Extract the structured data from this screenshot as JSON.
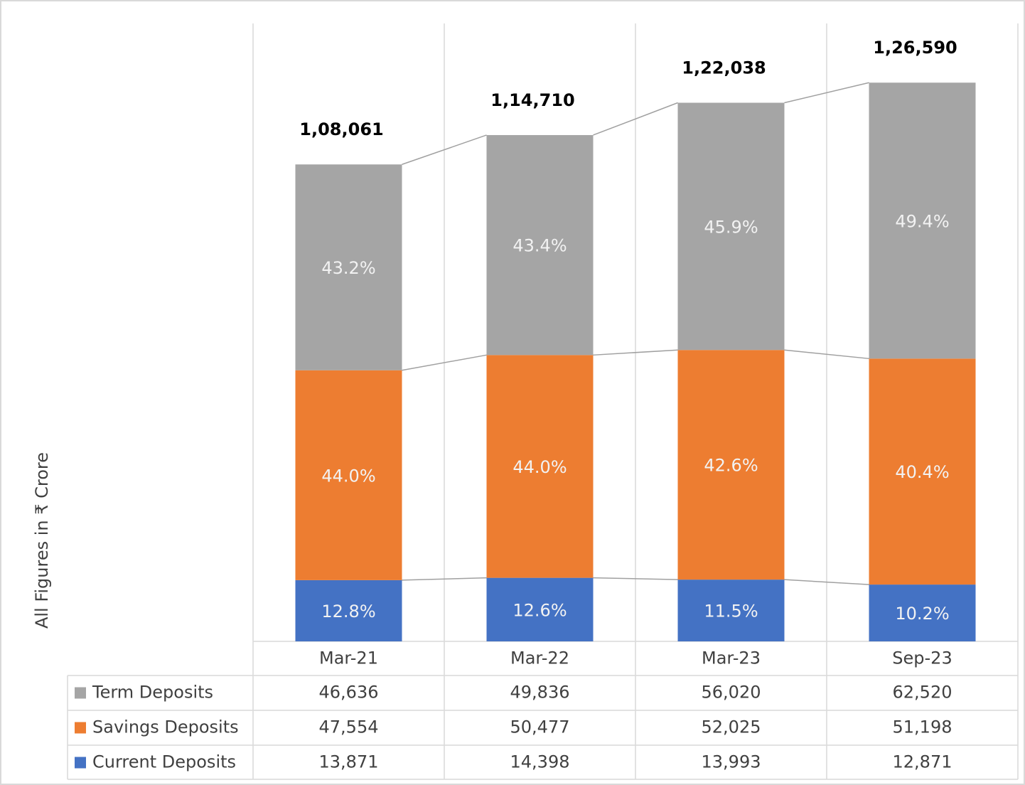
{
  "chart_data": {
    "type": "stacked_bar",
    "y_label": "All Figures in ₹ Crore",
    "categories": [
      "Mar-21",
      "Mar-22",
      "Mar-23",
      "Sep-23"
    ],
    "series": [
      {
        "name": "Current Deposits",
        "color": "#4472c4",
        "values": [
          13871,
          14398,
          13993,
          12871
        ],
        "value_labels": [
          "13,871",
          "14,398",
          "13,993",
          "12,871"
        ],
        "shares": [
          12.8,
          12.6,
          11.5,
          10.2
        ],
        "share_labels": [
          "12.8%",
          "12.6%",
          "11.5%",
          "10.2%"
        ]
      },
      {
        "name": "Savings Deposits",
        "color": "#ed7d31",
        "values": [
          47554,
          50477,
          52025,
          51198
        ],
        "value_labels": [
          "47,554",
          "50,477",
          "52,025",
          "51,198"
        ],
        "shares": [
          44.0,
          44.0,
          42.6,
          40.4
        ],
        "share_labels": [
          "44.0%",
          "44.0%",
          "42.6%",
          "40.4%"
        ]
      },
      {
        "name": "Term Deposits",
        "color": "#a5a5a5",
        "values": [
          46636,
          49836,
          56020,
          62520
        ],
        "value_labels": [
          "46,636",
          "49,836",
          "56,020",
          "62,520"
        ],
        "shares": [
          43.2,
          43.4,
          45.9,
          49.4
        ],
        "share_labels": [
          "43.2%",
          "43.4%",
          "45.9%",
          "49.4%"
        ]
      }
    ],
    "totals": {
      "values": [
        108061,
        114710,
        122038,
        126590
      ],
      "value_labels": [
        "1,08,061",
        "1,14,710",
        "1,22,038",
        "1,26,590"
      ]
    },
    "ylim": [
      0,
      140000
    ]
  }
}
